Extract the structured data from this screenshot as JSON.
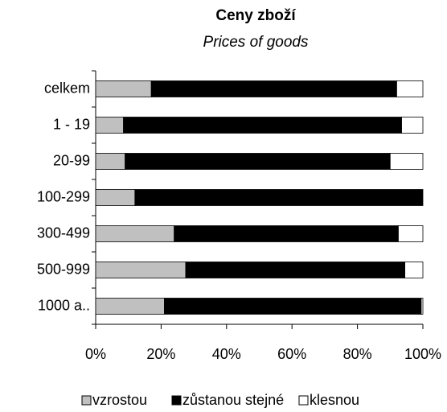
{
  "chart_data": {
    "type": "stacked_barh",
    "title": "Ceny zboží",
    "subtitle": "Prices of goods",
    "categories": [
      "celkem",
      "1 - 19",
      "20-99",
      "100-299",
      "300-499",
      "500-999",
      "1000 a.."
    ],
    "series": [
      {
        "name": "vzrostou",
        "color": "#c0c0c0",
        "values": [
          17,
          8.5,
          9,
          12,
          24,
          27.5,
          21
        ]
      },
      {
        "name": "zůstanou stejné",
        "color": "#000000",
        "values": [
          75,
          85,
          81,
          88,
          68.5,
          67,
          78.5
        ]
      },
      {
        "name": "klesnou",
        "color": "#ffffff",
        "values": [
          8,
          6.5,
          10,
          0,
          7.5,
          5.5,
          0.5
        ]
      }
    ],
    "xlim": [
      0,
      100
    ],
    "xticks": [
      {
        "value": 0,
        "label": "0%"
      },
      {
        "value": 20,
        "label": "20%"
      },
      {
        "value": 40,
        "label": "40%"
      },
      {
        "value": 60,
        "label": "60%"
      },
      {
        "value": 80,
        "label": "80%"
      },
      {
        "value": 100,
        "label": "100%"
      }
    ],
    "legend": "bottom"
  }
}
